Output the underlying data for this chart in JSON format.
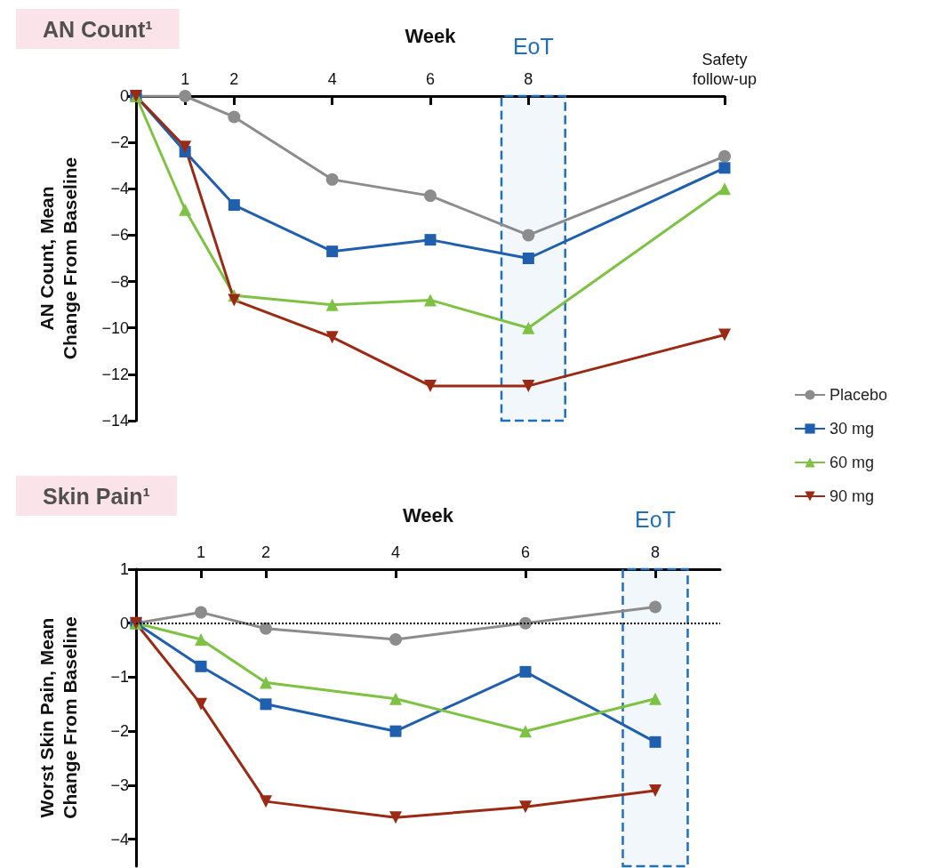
{
  "chart_data": [
    {
      "type": "line",
      "title": "AN Count¹",
      "xlabel": "Week",
      "ylabel": "AN Count, Mean Change From Baseline",
      "x": [
        0,
        1,
        2,
        4,
        6,
        8,
        12
      ],
      "xlim": [
        0,
        12
      ],
      "xticks": [
        1,
        2,
        4,
        6,
        8,
        {
          "value": 12,
          "label": "Safety follow-up"
        }
      ],
      "ylim": [
        -14,
        0
      ],
      "yticks": [
        -14,
        -12,
        -10,
        -8,
        -6,
        -4,
        -2,
        0
      ],
      "grid": false,
      "legend": "bottom right",
      "line_style": "solid",
      "series": [
        {
          "name": "Placebo",
          "color": "#8c8c8c",
          "marker": "circle",
          "values": [
            0,
            0,
            -0.9,
            -3.6,
            -4.3,
            -6.0,
            -2.6
          ]
        },
        {
          "name": "30 mg",
          "color": "#1f5fad",
          "marker": "square",
          "values": [
            0,
            -2.4,
            -4.7,
            -6.7,
            -6.2,
            -7.0,
            -3.1
          ]
        },
        {
          "name": "60 mg",
          "color": "#7dc242",
          "marker": "triangle",
          "values": [
            0,
            -4.9,
            -8.6,
            -9.0,
            -8.8,
            -10.0,
            -4.0
          ]
        },
        {
          "name": "90 mg",
          "color": "#9b2a14",
          "marker": "triangle-down",
          "values": [
            0,
            -2.2,
            -8.8,
            -10.4,
            -12.5,
            -12.5,
            -10.3
          ]
        }
      ],
      "bands": [
        {
          "axis": "x",
          "from": 7.45,
          "to": 8.75,
          "label": "EoT",
          "color": "#1f6fbf"
        }
      ]
    },
    {
      "type": "line",
      "title": "Skin Pain¹",
      "xlabel": "Week",
      "ylabel": "Worst Skin Pain, Mean Change From Baseline",
      "x": [
        0,
        1,
        2,
        4,
        6,
        8
      ],
      "xlim": [
        0,
        9
      ],
      "xticks": [
        1,
        2,
        4,
        6,
        8
      ],
      "ylim": [
        -4.5,
        1
      ],
      "yticks": [
        -4,
        -3,
        -2,
        -1,
        0,
        1
      ],
      "grid": false,
      "line_style": "solid",
      "series": [
        {
          "color": "#8c8c8c",
          "marker": "circle",
          "values": [
            0,
            0.2,
            -0.1,
            -0.3,
            0,
            0.3
          ]
        },
        {
          "color": "#1f5fad",
          "marker": "square",
          "values": [
            0,
            -0.8,
            -1.5,
            -2.0,
            -0.9,
            -2.2
          ]
        },
        {
          "color": "#7dc242",
          "marker": "triangle",
          "values": [
            0,
            -0.3,
            -1.1,
            -1.4,
            -2.0,
            -1.4
          ]
        },
        {
          "color": "#9b2a14",
          "marker": "triangle-down",
          "values": [
            0,
            -1.5,
            -3.3,
            -3.6,
            -3.4,
            -3.1
          ]
        }
      ],
      "ref_lines": [
        {
          "axis": "y",
          "value": 0,
          "line_style": "dotted",
          "color": "#000000"
        }
      ],
      "bands": [
        {
          "axis": "x",
          "from": 7.5,
          "to": 8.5,
          "label": "EoT",
          "color": "#1f6fbf"
        }
      ]
    }
  ]
}
